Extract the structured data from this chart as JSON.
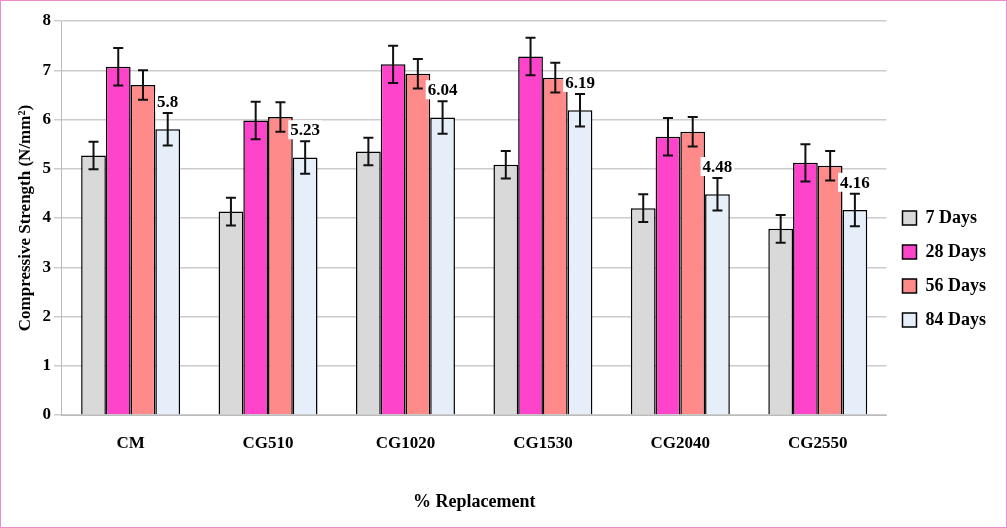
{
  "chart_data": {
    "type": "bar",
    "xlabel": "% Replacement",
    "ylabel": "Compressive Strength (N/mm²)",
    "categories": [
      "CM",
      "CG510",
      "CG1020",
      "CG1530",
      "CG2040",
      "CG2550"
    ],
    "series": [
      {
        "name": "7 Days",
        "color": "#d9d9d9",
        "values": [
          5.27,
          4.13,
          5.35,
          5.08,
          4.2,
          3.78
        ],
        "errors": [
          0.28,
          0.28,
          0.28,
          0.28,
          0.28,
          0.28
        ]
      },
      {
        "name": "28 Days",
        "color": "#ff44cc",
        "values": [
          7.07,
          5.98,
          7.12,
          7.28,
          5.65,
          5.12
        ],
        "errors": [
          0.38,
          0.38,
          0.38,
          0.38,
          0.38,
          0.38
        ]
      },
      {
        "name": "56 Days",
        "color": "#ff8a8a",
        "values": [
          6.7,
          6.05,
          6.93,
          6.85,
          5.75,
          5.06
        ],
        "errors": [
          0.3,
          0.3,
          0.3,
          0.3,
          0.3,
          0.3
        ]
      },
      {
        "name": "84 Days",
        "color": "#e6eef9",
        "values": [
          5.8,
          5.23,
          6.04,
          6.19,
          4.48,
          4.16
        ],
        "errors": [
          0.33,
          0.33,
          0.33,
          0.33,
          0.33,
          0.33
        ],
        "value_labels": [
          "5.8",
          "5.23",
          "6.04",
          "6.19",
          "4.48",
          "4.16"
        ]
      }
    ],
    "ylim": [
      0,
      8
    ],
    "yticks": [
      0,
      1,
      2,
      3,
      4,
      5,
      6,
      7,
      8
    ],
    "grid": "y",
    "legend": "right"
  }
}
